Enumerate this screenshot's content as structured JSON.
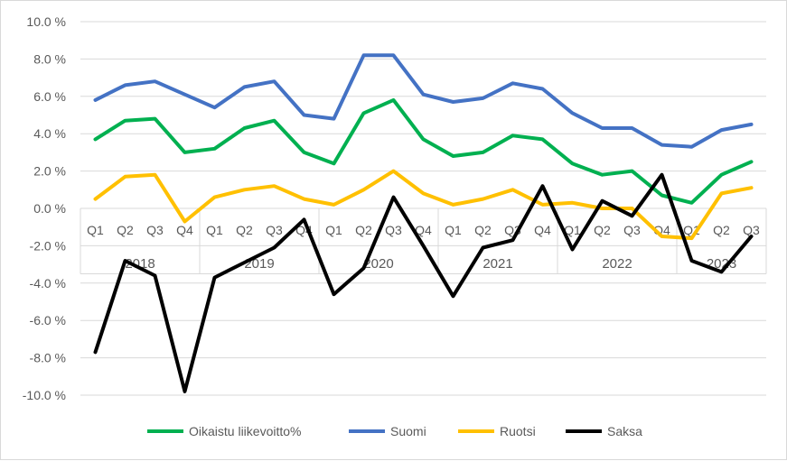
{
  "chart_data": {
    "type": "line",
    "title": "",
    "xlabel": "",
    "ylabel": "",
    "ylim": [
      -10,
      10
    ],
    "y_ticks": [
      "10.0 %",
      "8.0 %",
      "6.0 %",
      "4.0 %",
      "2.0 %",
      "0.0 %",
      "-2.0 %",
      "-4.0 %",
      "-6.0 %",
      "-8.0 %",
      "-10.0 %"
    ],
    "y_tick_values": [
      10,
      8,
      6,
      4,
      2,
      0,
      -2,
      -4,
      -6,
      -8,
      -10
    ],
    "grid": "horizontal",
    "legend_position": "bottom",
    "years": [
      {
        "label": "2018",
        "quarters": [
          "Q1",
          "Q2",
          "Q3",
          "Q4"
        ]
      },
      {
        "label": "2019",
        "quarters": [
          "Q1",
          "Q2",
          "Q3",
          "Q4"
        ]
      },
      {
        "label": "2020",
        "quarters": [
          "Q1",
          "Q2",
          "Q3",
          "Q4"
        ]
      },
      {
        "label": "2021",
        "quarters": [
          "Q1",
          "Q2",
          "Q3",
          "Q4"
        ]
      },
      {
        "label": "2022",
        "quarters": [
          "Q1",
          "Q2",
          "Q3",
          "Q4"
        ]
      },
      {
        "label": "2023",
        "quarters": [
          "Q1",
          "Q2",
          "Q3"
        ]
      }
    ],
    "series": [
      {
        "name": "Oikaistu liikevoitto%",
        "color": "#00b050",
        "values": [
          3.7,
          4.7,
          4.8,
          3.0,
          3.2,
          4.3,
          4.7,
          3.0,
          2.4,
          5.1,
          5.8,
          3.7,
          2.8,
          3.0,
          3.9,
          3.7,
          2.4,
          1.8,
          2.0,
          0.7,
          0.3,
          1.8,
          2.5
        ]
      },
      {
        "name": "Suomi",
        "color": "#4472c4",
        "values": [
          5.8,
          6.6,
          6.8,
          6.1,
          5.4,
          6.5,
          6.8,
          5.0,
          4.8,
          8.2,
          8.2,
          6.1,
          5.7,
          5.9,
          6.7,
          6.4,
          5.1,
          4.3,
          4.3,
          3.4,
          3.3,
          4.2,
          4.5
        ]
      },
      {
        "name": "Ruotsi",
        "color": "#ffc000",
        "values": [
          0.5,
          1.7,
          1.8,
          -0.7,
          0.6,
          1.0,
          1.2,
          0.5,
          0.2,
          1.0,
          2.0,
          0.8,
          0.2,
          0.5,
          1.0,
          0.2,
          0.3,
          0.0,
          0.0,
          -1.5,
          -1.6,
          0.8,
          1.1
        ]
      },
      {
        "name": "Saksa",
        "color": "#000000",
        "values": [
          -7.7,
          -2.8,
          -3.6,
          -9.8,
          -3.7,
          -2.9,
          -2.1,
          -0.6,
          -4.6,
          -3.2,
          0.6,
          -2.0,
          -4.7,
          -2.1,
          -1.7,
          1.2,
          -2.2,
          0.4,
          -0.4,
          1.8,
          -2.8,
          -3.4,
          -1.5
        ]
      }
    ]
  }
}
